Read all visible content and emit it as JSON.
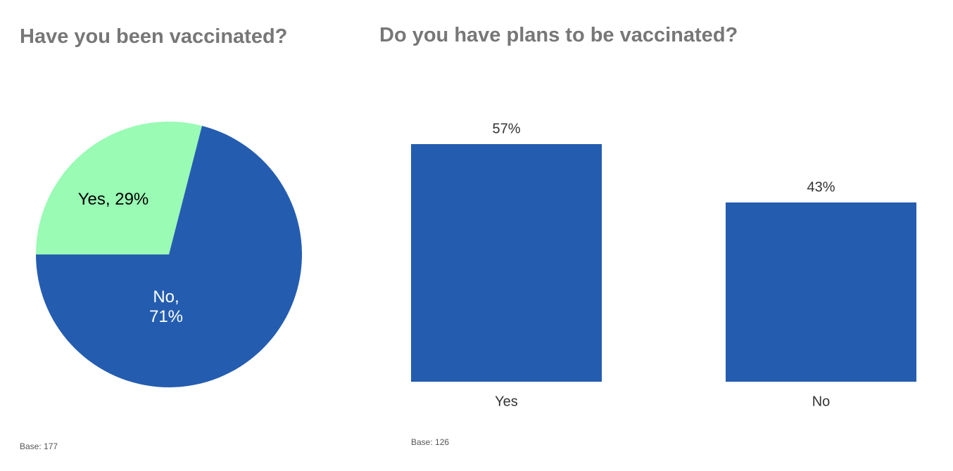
{
  "chart_data": [
    {
      "type": "pie",
      "title": "Have you been vaccinated?",
      "categories": [
        "Yes",
        "No"
      ],
      "values": [
        29,
        71
      ],
      "value_labels": [
        "Yes, 29%",
        "No, 71%"
      ],
      "colors": [
        "#99fbb4",
        "#245db0"
      ],
      "label_colors": [
        "#000000",
        "#ffffff"
      ],
      "note": "Base: 177"
    },
    {
      "type": "bar",
      "title": "Do you have plans to be vaccinated?",
      "categories": [
        "Yes",
        "No"
      ],
      "values": [
        57,
        43
      ],
      "value_labels": [
        "57%",
        "43%"
      ],
      "color": "#245db0",
      "note": "Base: 126"
    }
  ]
}
